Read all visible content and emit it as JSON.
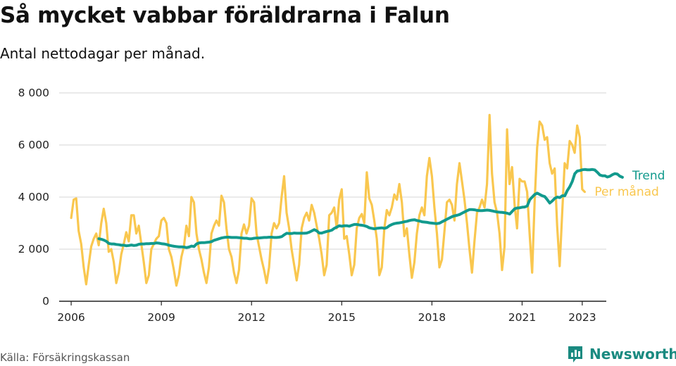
{
  "title": "Så mycket vabbar föräldrarna i Falun",
  "subtitle": "Antal nettodagar per månad.",
  "source": "Källa: Försäkringskassan",
  "brand": "Newsworthy",
  "colors": {
    "monthly": "#f9c74f",
    "trend": "#129a8d",
    "grid": "#dddddd",
    "axis": "#222222",
    "brand": "#1a8a80"
  },
  "chart_data": {
    "type": "line",
    "title": "Så mycket vabbar föräldrarna i Falun",
    "subtitle": "Antal nettodagar per månad.",
    "xlabel": "",
    "ylabel": "",
    "xlim": [
      2005.6,
      2023.8
    ],
    "ylim": [
      0,
      8000
    ],
    "grid": "horizontal",
    "legend": "end-of-line labels (right)",
    "y_ticks": [
      {
        "value": 0,
        "label": "0"
      },
      {
        "value": 2000,
        "label": "2 000"
      },
      {
        "value": 4000,
        "label": "4 000"
      },
      {
        "value": 6000,
        "label": "6 000"
      },
      {
        "value": 8000,
        "label": "8 000"
      }
    ],
    "x_ticks": [
      {
        "value": 2006,
        "label": "2006"
      },
      {
        "value": 2009,
        "label": "2009"
      },
      {
        "value": 2012,
        "label": "2012"
      },
      {
        "value": 2015,
        "label": "2015"
      },
      {
        "value": 2018,
        "label": "2018"
      },
      {
        "value": 2021,
        "label": "2021"
      },
      {
        "value": 2023,
        "label": "2023"
      }
    ],
    "series": [
      {
        "name": "Per månad",
        "color": "#f9c74f",
        "start": 2006.0,
        "step": 0.08333,
        "values": [
          3200,
          3900,
          3950,
          2700,
          2200,
          1300,
          650,
          1400,
          2100,
          2400,
          2600,
          2150,
          3000,
          3550,
          3000,
          1900,
          2000,
          1500,
          700,
          1100,
          1800,
          2200,
          2650,
          2300,
          3300,
          3300,
          2600,
          2900,
          2200,
          1500,
          700,
          1000,
          2000,
          2200,
          2400,
          2500,
          3100,
          3200,
          3000,
          2000,
          1700,
          1200,
          600,
          1000,
          1700,
          2100,
          2900,
          2500,
          4000,
          3800,
          2600,
          2000,
          1600,
          1100,
          700,
          1300,
          2600,
          2900,
          3100,
          2900,
          4050,
          3800,
          2800,
          2000,
          1700,
          1100,
          700,
          1200,
          2600,
          2950,
          2600,
          2900,
          3950,
          3800,
          2600,
          2100,
          1600,
          1200,
          700,
          1300,
          2600,
          3000,
          2800,
          3000,
          4000,
          4800,
          3400,
          2800,
          2000,
          1400,
          800,
          1400,
          2800,
          3200,
          3400,
          3100,
          3700,
          3400,
          2900,
          2400,
          1800,
          1000,
          1400,
          3300,
          3400,
          3600,
          2800,
          3900,
          4300,
          2400,
          2500,
          1800,
          1000,
          1400,
          2800,
          3200,
          3350,
          3000,
          4950,
          3950,
          3700,
          3100,
          2400,
          1000,
          1300,
          2800,
          3500,
          3300,
          3600,
          4100,
          3900,
          4500,
          3800,
          2500,
          2800,
          1800,
          900,
          1500,
          2600,
          3300,
          3600,
          3300,
          4800,
          5500,
          4800,
          3600,
          2600,
          1300,
          1600,
          2700,
          3800,
          3900,
          3700,
          3100,
          4500,
          5300,
          4600,
          3900,
          3000,
          2000,
          1100,
          2300,
          3400,
          3600,
          3900,
          3600,
          4500,
          7150,
          4900,
          3800,
          3400,
          2600,
          1200,
          2100,
          6600,
          4500,
          5150,
          3700,
          2800,
          4700,
          4600,
          4600,
          4200,
          2600,
          1100,
          3800,
          5900,
          6900,
          6750,
          6200,
          6300,
          5300,
          4900,
          5100,
          2900,
          1350,
          3400,
          5300,
          5100,
          6150,
          6000,
          5700,
          6750,
          6300,
          4300,
          4200
        ]
      },
      {
        "name": "Trend",
        "color": "#129a8d",
        "start": 2006.92,
        "step": 0.08333,
        "values": [
          2400,
          2380,
          2350,
          2300,
          2220,
          2200,
          2200,
          2180,
          2170,
          2150,
          2150,
          2130,
          2140,
          2160,
          2140,
          2150,
          2190,
          2200,
          2200,
          2210,
          2210,
          2220,
          2220,
          2240,
          2230,
          2210,
          2200,
          2180,
          2150,
          2130,
          2110,
          2100,
          2090,
          2090,
          2080,
          2060,
          2080,
          2120,
          2100,
          2200,
          2240,
          2250,
          2250,
          2260,
          2270,
          2290,
          2340,
          2370,
          2400,
          2430,
          2450,
          2460,
          2460,
          2450,
          2450,
          2450,
          2440,
          2430,
          2420,
          2420,
          2400,
          2400,
          2420,
          2430,
          2430,
          2440,
          2450,
          2450,
          2460,
          2460,
          2450,
          2450,
          2460,
          2480,
          2550,
          2610,
          2600,
          2600,
          2620,
          2610,
          2610,
          2610,
          2610,
          2620,
          2650,
          2700,
          2750,
          2700,
          2620,
          2620,
          2650,
          2680,
          2700,
          2730,
          2800,
          2850,
          2900,
          2880,
          2900,
          2900,
          2880,
          2920,
          2950,
          2950,
          2930,
          2920,
          2900,
          2870,
          2820,
          2800,
          2780,
          2800,
          2810,
          2820,
          2800,
          2830,
          2900,
          2950,
          2980,
          3000,
          3010,
          3030,
          3050,
          3070,
          3100,
          3120,
          3130,
          3100,
          3080,
          3050,
          3040,
          3030,
          3010,
          3000,
          2990,
          2980,
          3000,
          3050,
          3100,
          3150,
          3200,
          3250,
          3280,
          3300,
          3330,
          3380,
          3430,
          3480,
          3520,
          3520,
          3510,
          3490,
          3480,
          3480,
          3490,
          3500,
          3490,
          3470,
          3450,
          3430,
          3420,
          3410,
          3400,
          3380,
          3350,
          3450,
          3550,
          3580,
          3590,
          3610,
          3620,
          3660,
          3900,
          4000,
          4100,
          4150,
          4100,
          4050,
          4020,
          3900,
          3770,
          3850,
          3950,
          4000,
          3980,
          4050,
          4050,
          4250,
          4400,
          4600,
          4900,
          5000,
          5020,
          5050,
          5060,
          5050,
          5050,
          5060,
          5040,
          4950,
          4850,
          4820,
          4820,
          4770,
          4800,
          4860,
          4900,
          4880,
          4800,
          4760
        ]
      }
    ]
  }
}
